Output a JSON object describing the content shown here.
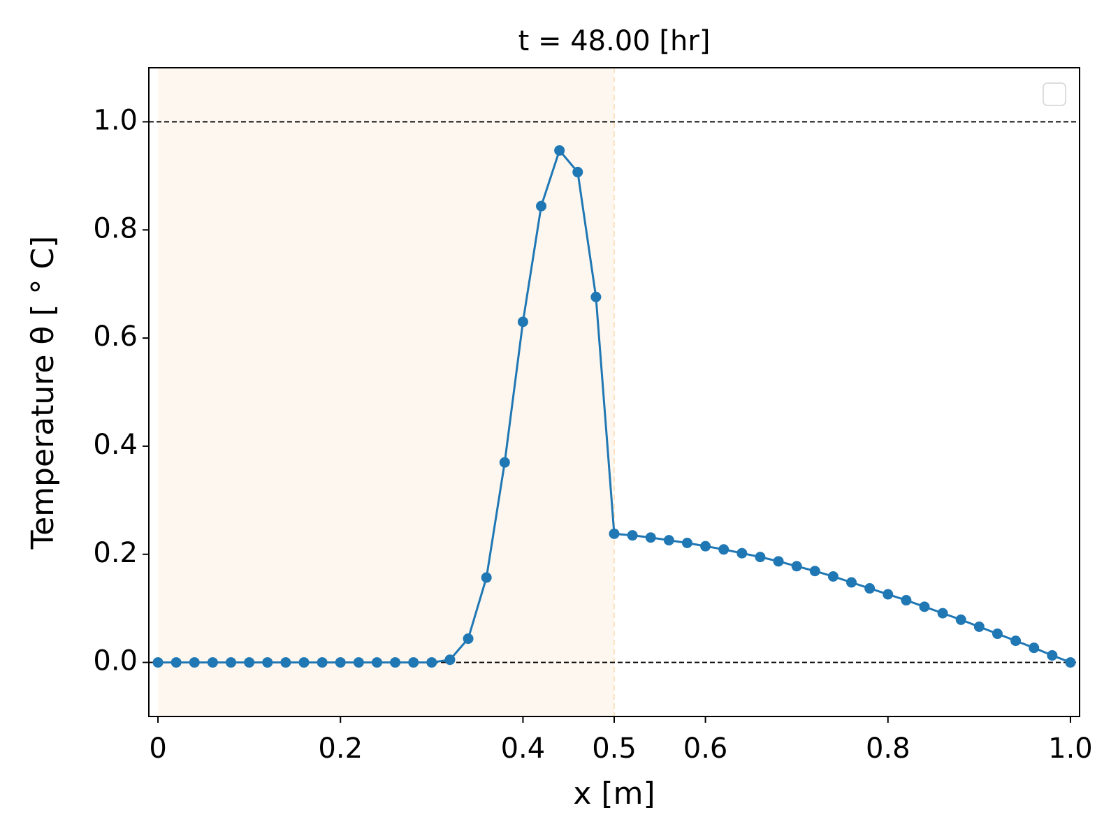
{
  "chart_data": {
    "type": "line",
    "title": "t = 48.00 [hr]",
    "xlabel": "x [m]",
    "ylabel": "Temperature θ [ ° C]",
    "x": [
      0,
      0.02,
      0.04,
      0.06,
      0.08,
      0.1,
      0.12,
      0.14,
      0.16,
      0.18,
      0.2,
      0.22,
      0.24,
      0.26,
      0.28,
      0.3,
      0.32,
      0.34,
      0.36,
      0.38,
      0.4,
      0.42,
      0.44,
      0.46,
      0.48,
      0.5,
      0.52,
      0.54,
      0.56,
      0.58,
      0.6,
      0.62,
      0.64,
      0.66,
      0.68,
      0.7,
      0.72,
      0.74,
      0.76,
      0.78,
      0.8,
      0.82,
      0.84,
      0.86,
      0.88,
      0.9,
      0.92,
      0.94,
      0.96,
      0.98,
      1.0
    ],
    "series": [
      {
        "color": "#1f77b4",
        "values": [
          0,
          0,
          0,
          0,
          0,
          0,
          0,
          0,
          0,
          0,
          0,
          0,
          0,
          0,
          0,
          0,
          0.005,
          0.044,
          0.157,
          0.37,
          0.63,
          0.844,
          0.947,
          0.907,
          0.676,
          0.238,
          0.235,
          0.231,
          0.226,
          0.221,
          0.215,
          0.209,
          0.202,
          0.195,
          0.187,
          0.178,
          0.169,
          0.159,
          0.148,
          0.137,
          0.126,
          0.115,
          0.103,
          0.091,
          0.079,
          0.066,
          0.053,
          0.04,
          0.027,
          0.013,
          0
        ]
      }
    ],
    "xlim": [
      -0.01,
      1.01
    ],
    "ylim": [
      -0.1,
      1.1
    ],
    "xticks": [
      0,
      0.2,
      0.4,
      0.5,
      0.6,
      0.8,
      {
        "value": 1.0,
        "label": "1.0"
      }
    ],
    "yticks": [
      {
        "value": 0,
        "label": "0.0"
      },
      0.2,
      0.4,
      0.6,
      0.8,
      {
        "value": 1,
        "label": "1.0"
      }
    ],
    "hlines": [
      0,
      1
    ],
    "shaded_span": [
      0,
      0.5
    ],
    "shade_color": "#fdf7ef",
    "grid": false
  }
}
